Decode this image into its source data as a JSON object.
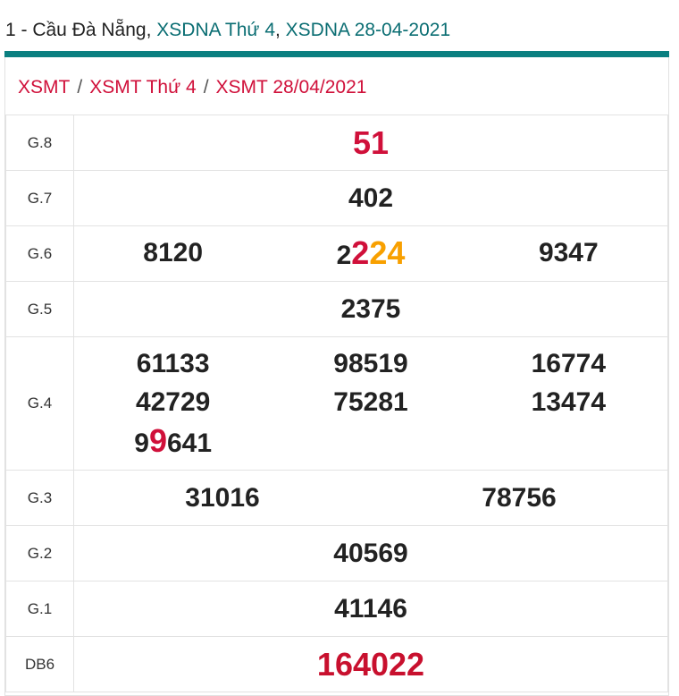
{
  "header": {
    "prefix": "1 - Cầu Đà Nẵng, ",
    "link1": "XSDNA Thứ 4",
    "comma": ", ",
    "link2": "XSDNA 28-04-2021"
  },
  "breadcrumb": [
    "XSMT",
    "XSMT Thứ 4",
    "XSMT 28/04/2021"
  ],
  "colors": {
    "accent": "#0a7f80",
    "red": "#d0103a",
    "orange": "#f8a000"
  },
  "prizes": [
    {
      "label": "G.8",
      "numbers": [
        "51"
      ]
    },
    {
      "label": "G.7",
      "numbers": [
        "402"
      ]
    },
    {
      "label": "G.6",
      "numbers": [
        "8120",
        [
          {
            "t": "2",
            "c": ""
          },
          {
            "t": "2",
            "c": "red big"
          },
          {
            "t": "24",
            "c": "org big"
          }
        ],
        "9347"
      ]
    },
    {
      "label": "G.5",
      "numbers": [
        "2375"
      ]
    },
    {
      "label": "G.4",
      "numbers": [
        "61133",
        "98519",
        "16774",
        "42729",
        "75281",
        "13474",
        [
          {
            "t": "9",
            "c": ""
          },
          {
            "t": "9",
            "c": "red big"
          },
          {
            "t": "641",
            "c": ""
          }
        ]
      ]
    },
    {
      "label": "G.3",
      "numbers": [
        "31016",
        "78756"
      ]
    },
    {
      "label": "G.2",
      "numbers": [
        "40569"
      ]
    },
    {
      "label": "G.1",
      "numbers": [
        "41146"
      ]
    },
    {
      "label": "DB6",
      "numbers": [
        "164022"
      ]
    }
  ]
}
